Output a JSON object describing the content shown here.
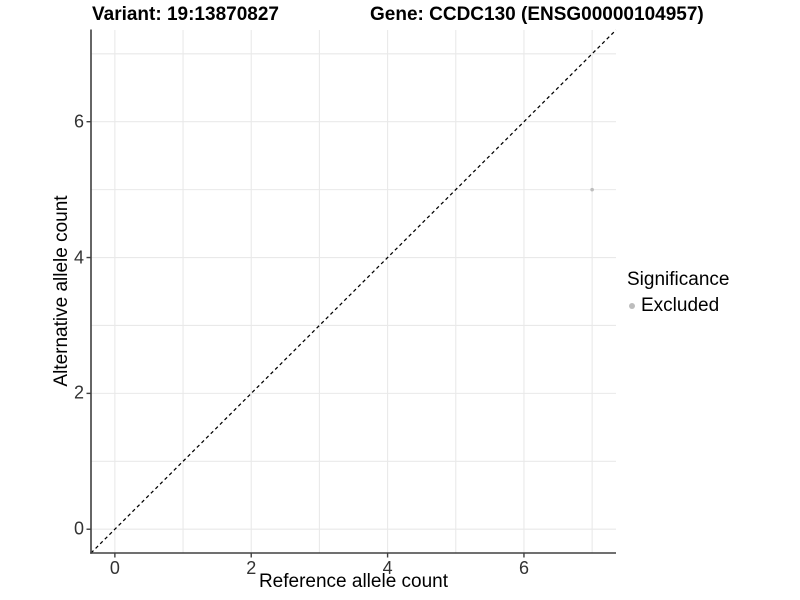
{
  "header": {
    "variant_title": "Variant: 19:13870827",
    "gene_title": "Gene: CCDC130 (ENSG00000104957)"
  },
  "chart_data": {
    "type": "scatter",
    "title": "Variant: 19:13870827   Gene: CCDC130 (ENSG00000104957)",
    "xlabel": "Reference allele count",
    "ylabel": "Alternative allele count",
    "xlim": [
      -0.35,
      7.35
    ],
    "ylim": [
      -0.35,
      7.35
    ],
    "x_ticks": [
      0,
      2,
      4,
      6
    ],
    "y_ticks": [
      0,
      2,
      4,
      6
    ],
    "grid": true,
    "grid_values": [
      0,
      1,
      2,
      3,
      4,
      5,
      6,
      7
    ],
    "reference_line": {
      "kind": "identity",
      "style": "dashed",
      "color": "#000000"
    },
    "series": [
      {
        "name": "Excluded",
        "color": "#bdbdbd",
        "points": [
          {
            "x": 7,
            "y": 5
          }
        ]
      }
    ],
    "legend": {
      "title": "Significance",
      "position": "right",
      "items": [
        {
          "label": "Excluded",
          "color": "#bdbdbd"
        }
      ]
    }
  },
  "colors": {
    "background": "#ffffff",
    "gridline": "#e9e9e9",
    "axis_line": "#404040",
    "tick_text": "#333333",
    "title_text": "#000000",
    "point": "#bdbdbd"
  }
}
